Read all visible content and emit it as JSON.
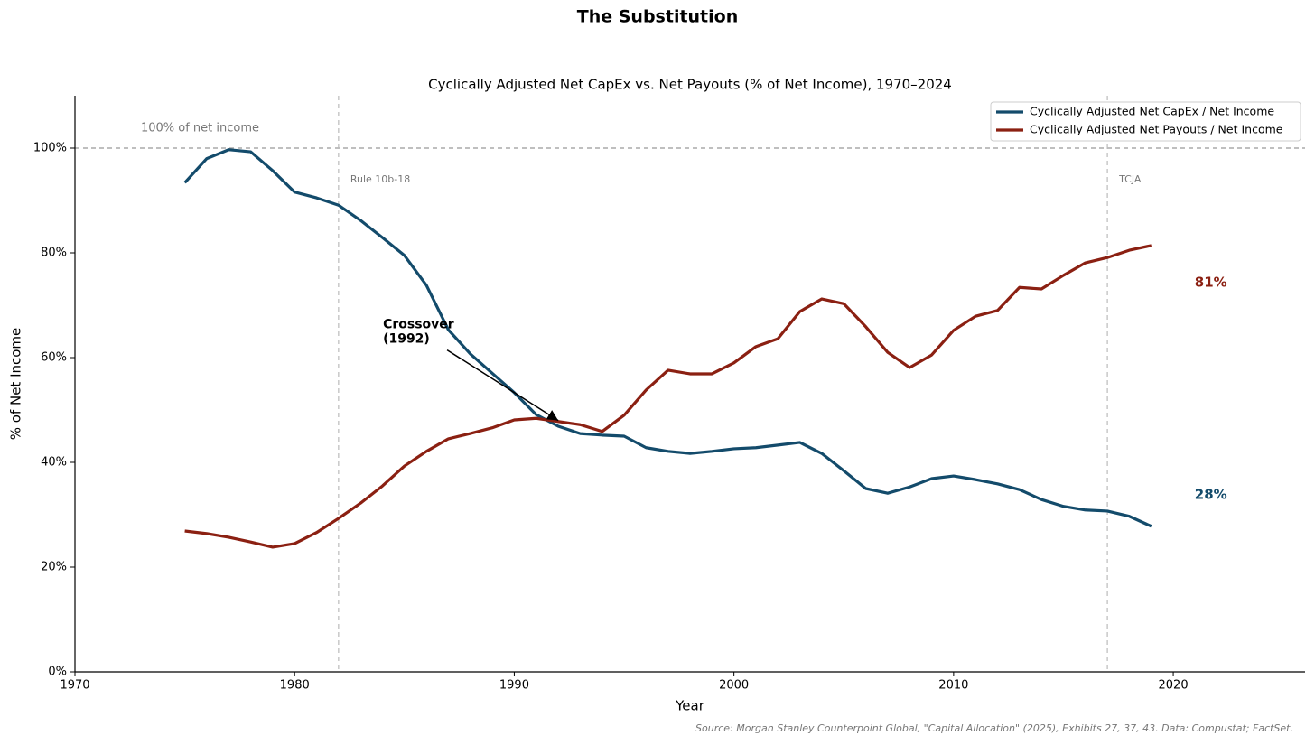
{
  "chart_data": {
    "type": "line",
    "title": "The Substitution",
    "subtitle": "Cyclically Adjusted Net CapEx vs. Net Payouts (% of Net Income), 1970–2024",
    "x_label": "Year",
    "y_label": "% of Net Income",
    "source": "Source: Morgan Stanley Counterpoint Global, \"Capital Allocation\" (2025), Exhibits 27, 37, 43. Data: Compustat; FactSet.",
    "x": [
      1975,
      1976,
      1977,
      1978,
      1979,
      1980,
      1981,
      1982,
      1983,
      1984,
      1985,
      1986,
      1987,
      1988,
      1989,
      1990,
      1991,
      1992,
      1993,
      1994,
      1995,
      1996,
      1997,
      1998,
      1999,
      2000,
      2001,
      2002,
      2003,
      2004,
      2005,
      2006,
      2007,
      2008,
      2009,
      2010,
      2011,
      2012,
      2013,
      2014,
      2015,
      2016,
      2017,
      2018,
      2019
    ],
    "series": [
      {
        "name": "Cyclically Adjusted Net CapEx / Net Income",
        "color": "#134b6b",
        "end_label": "28%",
        "values": [
          93.4,
          98,
          99.7,
          99.3,
          95.7,
          91.6,
          90.5,
          89.1,
          86.2,
          82.9,
          79.5,
          73.8,
          65.3,
          60.7,
          57,
          53.3,
          49.1,
          46.9,
          45.5,
          45.2,
          45,
          42.8,
          42.1,
          41.7,
          42.1,
          42.6,
          42.8,
          43.3,
          43.8,
          41.7,
          38.4,
          35,
          34.1,
          35.3,
          36.9,
          37.4,
          36.7,
          35.9,
          34.8,
          32.9,
          31.6,
          30.9,
          30.7,
          29.7,
          27.8
        ]
      },
      {
        "name": "Cyclically Adjusted Net Payouts / Net Income",
        "color": "#8b2012",
        "end_label": "81%",
        "values": [
          26.9,
          26.4,
          25.7,
          24.8,
          23.8,
          24.5,
          26.6,
          29.3,
          32.2,
          35.5,
          39.3,
          42.1,
          44.5,
          45.5,
          46.6,
          48.1,
          48.4,
          47.8,
          47.2,
          45.9,
          49,
          53.8,
          57.6,
          56.9,
          56.9,
          59,
          62.1,
          63.6,
          68.8,
          71.2,
          70.3,
          65.9,
          61,
          58.1,
          60.5,
          65.2,
          67.9,
          69,
          73.4,
          73.1,
          75.7,
          78.1,
          79.1,
          80.5,
          81.4
        ]
      }
    ],
    "xlim": [
      1970,
      2026
    ],
    "xticks": [
      1970,
      1980,
      1990,
      2000,
      2010,
      2020
    ],
    "ylim": [
      0,
      110
    ],
    "yticks": [
      {
        "value": 0,
        "label": "0%"
      },
      {
        "value": 20,
        "label": "20%"
      },
      {
        "value": 40,
        "label": "40%"
      },
      {
        "value": 60,
        "label": "60%"
      },
      {
        "value": 80,
        "label": "80%"
      },
      {
        "value": 100,
        "label": "100%"
      }
    ],
    "hline": {
      "y": 100,
      "label": "100% of net income"
    },
    "vlines": [
      {
        "x": 1982,
        "label": "Rule 10b-18"
      },
      {
        "x": 2017,
        "label": "TCJA"
      }
    ],
    "annotation": {
      "lines": [
        "Crossover",
        "(1992)"
      ],
      "x": 1992,
      "y": 48
    },
    "legend": "upper right"
  }
}
